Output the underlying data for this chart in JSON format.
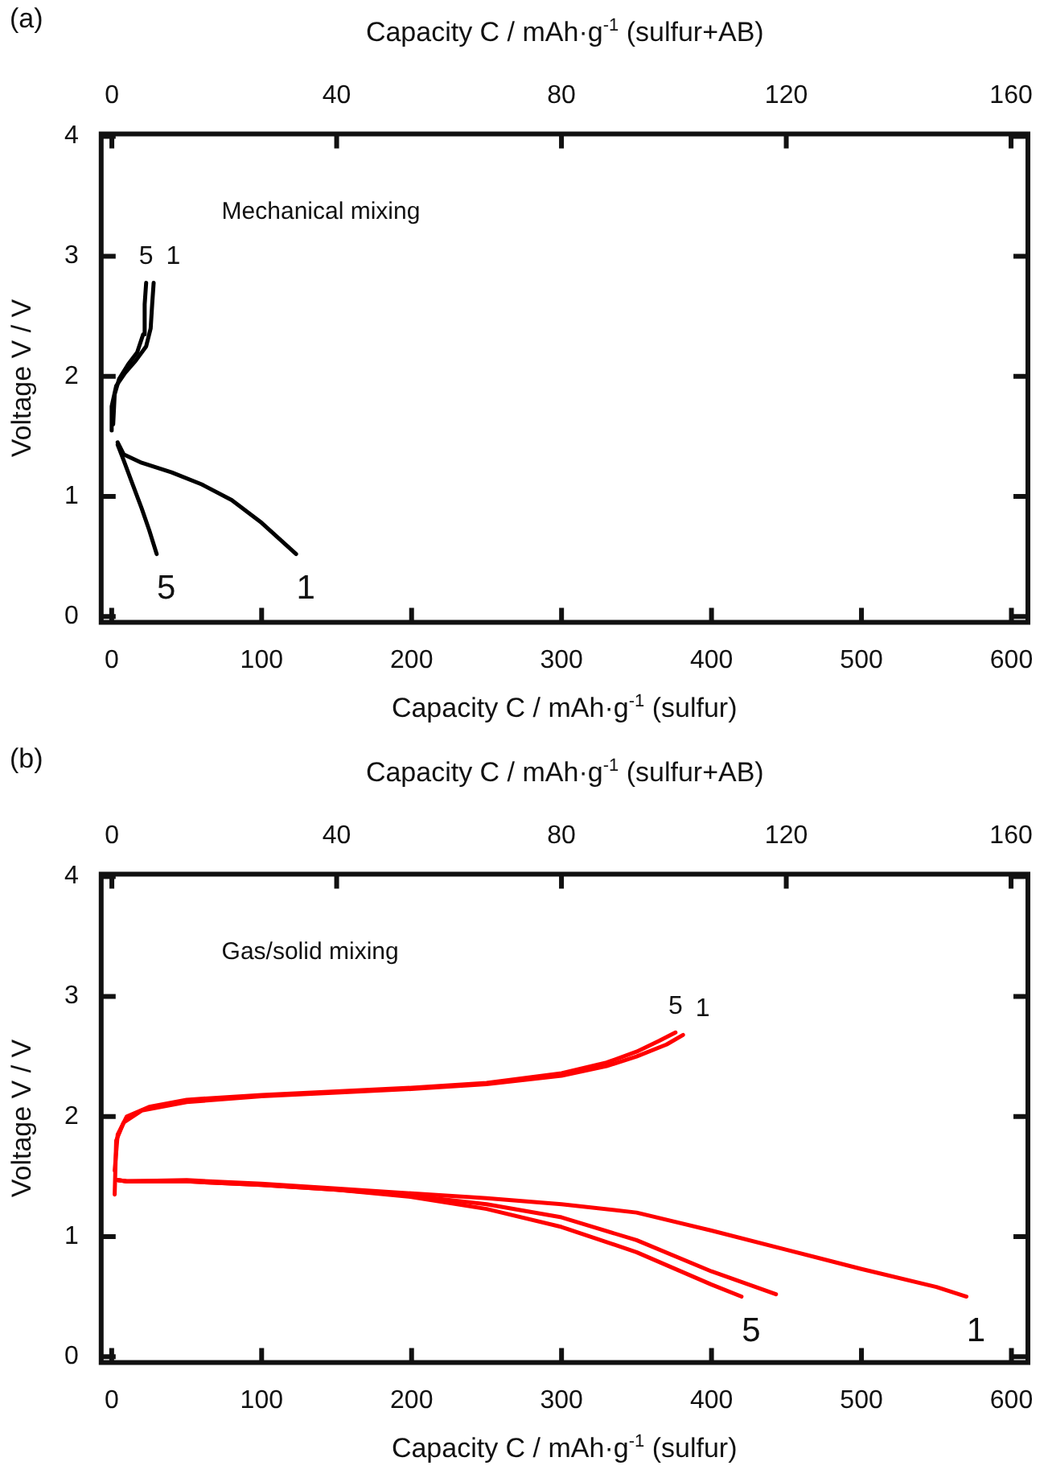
{
  "chart_data": [
    {
      "type": "line",
      "title": "(a)",
      "xlabel": "Capacity C / mAh·g$^{-1}$ (sulfur)",
      "x2label": "Capacity C / mAh·g$^{-1}$ (sulfur+AB)",
      "ylabel": "Voltage V / V",
      "xlim": [
        -7,
        611
      ],
      "xticks": [
        0,
        100,
        200,
        300,
        400,
        500,
        600
      ],
      "x2lim": [
        -1.9,
        163
      ],
      "x2ticks": [
        0,
        40,
        80,
        120,
        160
      ],
      "ylim": [
        -0.05,
        4.02
      ],
      "yticks": [
        0,
        1,
        2,
        3,
        4
      ],
      "annotations": [
        "Mechanical mixing"
      ],
      "series": [
        {
          "name": "5",
          "color": "#000000",
          "x": [
            1,
            2,
            5,
            11,
            17,
            21,
            22,
            23
          ],
          "values": [
            1.6,
            1.85,
            1.98,
            2.1,
            2.2,
            2.35,
            2.6,
            2.78
          ]
        },
        {
          "name": "1",
          "color": "#000000",
          "x": [
            0,
            0,
            3,
            9,
            16,
            23,
            26,
            27,
            28
          ],
          "values": [
            1.55,
            1.75,
            1.92,
            2.03,
            2.13,
            2.25,
            2.4,
            2.6,
            2.78
          ]
        },
        {
          "name": "1",
          "color": "#000000",
          "x": [
            4,
            8,
            20,
            40,
            60,
            80,
            100,
            123
          ],
          "values": [
            1.45,
            1.35,
            1.28,
            1.2,
            1.1,
            0.97,
            0.78,
            0.52
          ]
        },
        {
          "name": "5",
          "color": "#000000",
          "x": [
            4,
            8,
            14,
            20,
            25,
            30
          ],
          "values": [
            1.43,
            1.3,
            1.1,
            0.9,
            0.72,
            0.52
          ]
        }
      ]
    },
    {
      "type": "line",
      "title": "(b)",
      "xlabel": "Capacity C / mAh·g$^{-1}$ (sulfur)",
      "x2label": "Capacity C / mAh·g$^{-1}$ (sulfur+AB)",
      "ylabel": "Voltage V / V",
      "xlim": [
        -7,
        611
      ],
      "xticks": [
        0,
        100,
        200,
        300,
        400,
        500,
        600
      ],
      "x2lim": [
        -1.9,
        163
      ],
      "x2ticks": [
        0,
        40,
        80,
        120,
        160
      ],
      "ylim": [
        -0.05,
        4.02
      ],
      "yticks": [
        0,
        1,
        2,
        3,
        4
      ],
      "annotations": [
        "Gas/solid mixing"
      ],
      "series": [
        {
          "name": "5",
          "color": "#ff0000",
          "x": [
            2,
            4,
            10,
            25,
            50,
            100,
            150,
            200,
            250,
            300,
            330,
            350,
            365,
            376
          ],
          "values": [
            1.55,
            1.85,
            2.0,
            2.08,
            2.14,
            2.18,
            2.21,
            2.24,
            2.28,
            2.36,
            2.45,
            2.54,
            2.63,
            2.7
          ]
        },
        {
          "name": "1",
          "color": "#ff0000",
          "x": [
            2,
            3,
            8,
            20,
            50,
            100,
            150,
            200,
            250,
            300,
            330,
            350,
            370,
            381
          ],
          "values": [
            1.35,
            1.8,
            1.95,
            2.05,
            2.12,
            2.17,
            2.2,
            2.23,
            2.27,
            2.34,
            2.42,
            2.5,
            2.6,
            2.68
          ]
        },
        {
          "name": "1",
          "color": "#ff0000",
          "x": [
            4,
            10,
            50,
            100,
            150,
            200,
            250,
            300,
            350,
            400,
            450,
            500,
            550,
            570
          ],
          "values": [
            1.47,
            1.46,
            1.47,
            1.44,
            1.4,
            1.36,
            1.32,
            1.27,
            1.2,
            1.05,
            0.89,
            0.73,
            0.58,
            0.5
          ]
        },
        {
          "color": "#ff0000",
          "x": [
            4,
            10,
            50,
            100,
            150,
            200,
            250,
            300,
            350,
            400,
            443
          ],
          "values": [
            1.47,
            1.46,
            1.46,
            1.43,
            1.39,
            1.34,
            1.27,
            1.16,
            0.97,
            0.71,
            0.52
          ]
        },
        {
          "name": "5",
          "color": "#ff0000",
          "x": [
            4,
            10,
            50,
            100,
            150,
            200,
            250,
            300,
            350,
            400,
            420
          ],
          "values": [
            1.47,
            1.46,
            1.46,
            1.43,
            1.39,
            1.33,
            1.23,
            1.08,
            0.87,
            0.6,
            0.5
          ]
        }
      ]
    }
  ]
}
